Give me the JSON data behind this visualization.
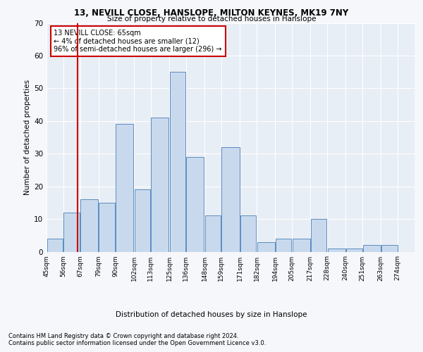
{
  "title1": "13, NEVILL CLOSE, HANSLOPE, MILTON KEYNES, MK19 7NY",
  "title2": "Size of property relative to detached houses in Hanslope",
  "xlabel": "Distribution of detached houses by size in Hanslope",
  "ylabel": "Number of detached properties",
  "footer1": "Contains HM Land Registry data © Crown copyright and database right 2024.",
  "footer2": "Contains public sector information licensed under the Open Government Licence v3.0.",
  "annotation_line1": "13 NEVILL CLOSE: 65sqm",
  "annotation_line2": "← 4% of detached houses are smaller (12)",
  "annotation_line3": "96% of semi-detached houses are larger (296) →",
  "property_size": 65,
  "bar_left_edges": [
    45,
    56,
    67,
    79,
    90,
    102,
    113,
    125,
    136,
    148,
    159,
    171,
    182,
    194,
    205,
    217,
    228,
    240,
    251,
    263
  ],
  "bar_widths": [
    11,
    11,
    12,
    11,
    12,
    11,
    12,
    11,
    12,
    11,
    12,
    11,
    12,
    11,
    12,
    11,
    12,
    11,
    12,
    11
  ],
  "bar_heights": [
    4,
    12,
    16,
    15,
    39,
    19,
    41,
    55,
    29,
    11,
    32,
    11,
    3,
    4,
    4,
    10,
    1,
    1,
    2,
    2
  ],
  "tick_labels": [
    "45sqm",
    "56sqm",
    "67sqm",
    "79sqm",
    "90sqm",
    "102sqm",
    "113sqm",
    "125sqm",
    "136sqm",
    "148sqm",
    "159sqm",
    "171sqm",
    "182sqm",
    "194sqm",
    "205sqm",
    "217sqm",
    "228sqm",
    "240sqm",
    "251sqm",
    "263sqm",
    "274sqm"
  ],
  "tick_positions": [
    45,
    56,
    67,
    79,
    90,
    102,
    113,
    125,
    136,
    148,
    159,
    171,
    182,
    194,
    205,
    217,
    228,
    240,
    251,
    263,
    274
  ],
  "bar_color": "#c9d9ed",
  "bar_edge_color": "#5b8dc0",
  "red_line_color": "#cc0000",
  "annotation_box_color": "#cc0000",
  "background_color": "#e8eef5",
  "fig_background_color": "#f5f7fa",
  "grid_color": "#ffffff",
  "ylim": [
    0,
    70
  ],
  "xlim": [
    45,
    285
  ]
}
